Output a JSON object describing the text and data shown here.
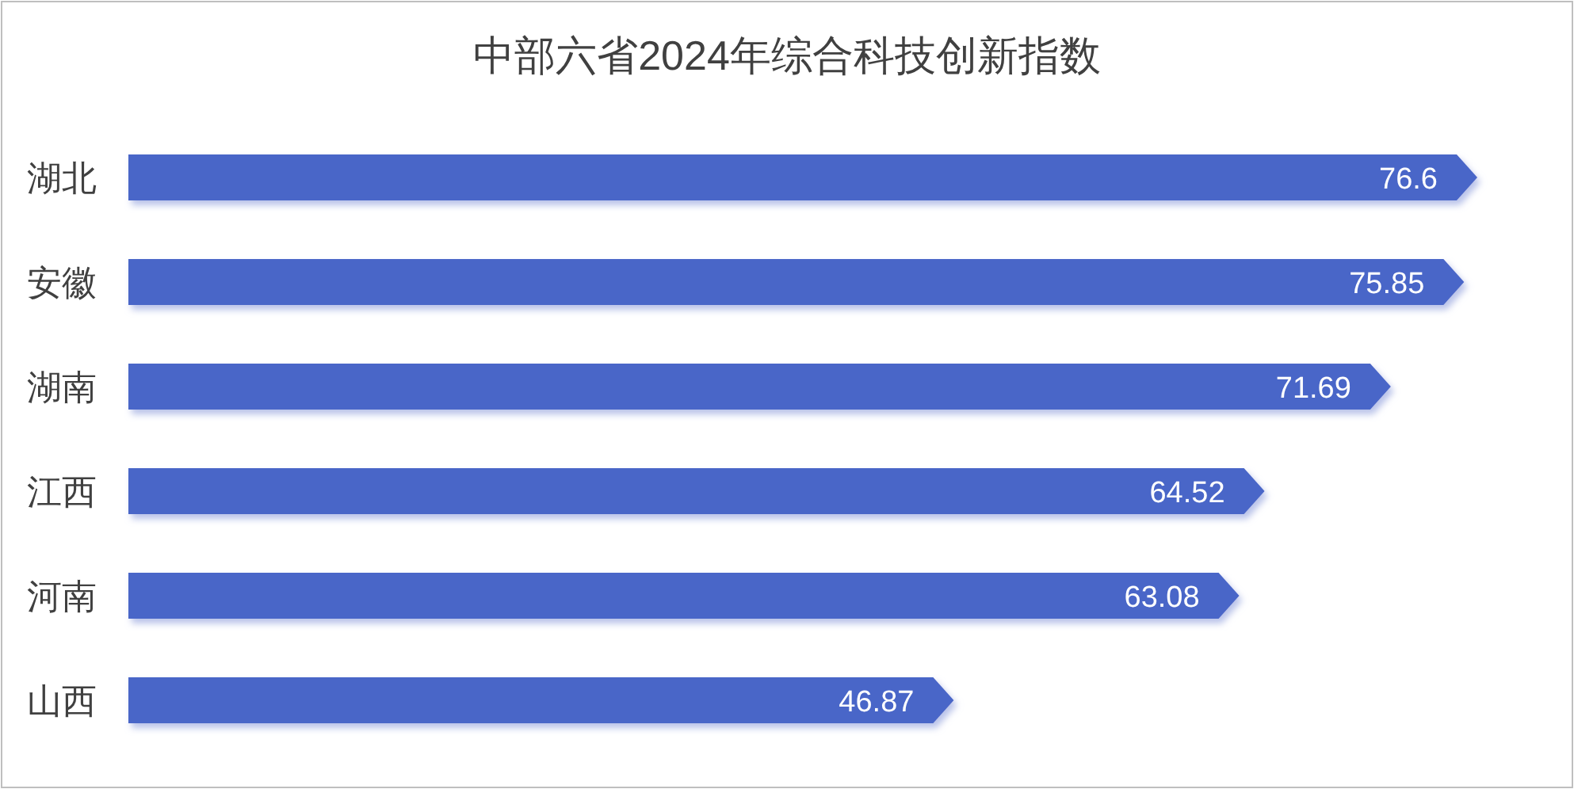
{
  "chart_data": {
    "type": "bar",
    "orientation": "horizontal",
    "title": "中部六省2024年综合科技创新指数",
    "categories": [
      "湖北",
      "安徽",
      "湖南",
      "江西",
      "河南",
      "山西"
    ],
    "values": [
      76.6,
      75.85,
      71.69,
      64.52,
      63.08,
      46.87
    ],
    "color": "#4a66c8",
    "data_labels": true
  }
}
